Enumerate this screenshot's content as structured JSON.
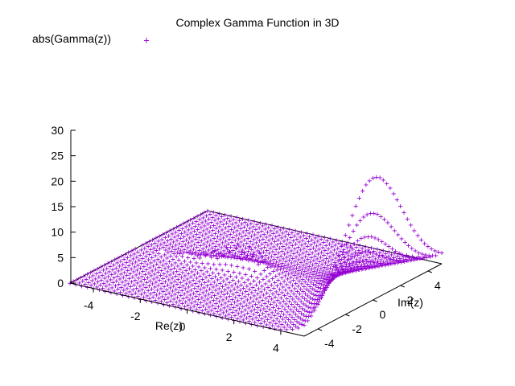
{
  "chart_data": {
    "type": "scatter",
    "subtype": "3d-surface-points",
    "title": "Complex Gamma Function in 3D",
    "xlabel": "Re(z)",
    "ylabel": "Im(z)",
    "zlabel": "",
    "legend": {
      "placement": "top-left",
      "entries": [
        {
          "label": "abs(Gamma(z))",
          "marker": "+",
          "color": "#9400d3"
        }
      ]
    },
    "xlim": [
      -5,
      5
    ],
    "ylim": [
      -5,
      5
    ],
    "zlim": [
      0,
      30
    ],
    "xticks": [
      "-4",
      "-2",
      "0",
      "2",
      "4"
    ],
    "yticks": [
      "-4",
      "-2",
      "0",
      "2",
      "4"
    ],
    "zticks": [
      "0",
      "5",
      "10",
      "15",
      "20",
      "25",
      "30"
    ],
    "series": [
      {
        "name": "abs(Gamma(z))",
        "color": "#9400d3",
        "marker": "+",
        "function": "abs(Gamma(x+iy))"
      }
    ],
    "grid": false
  }
}
